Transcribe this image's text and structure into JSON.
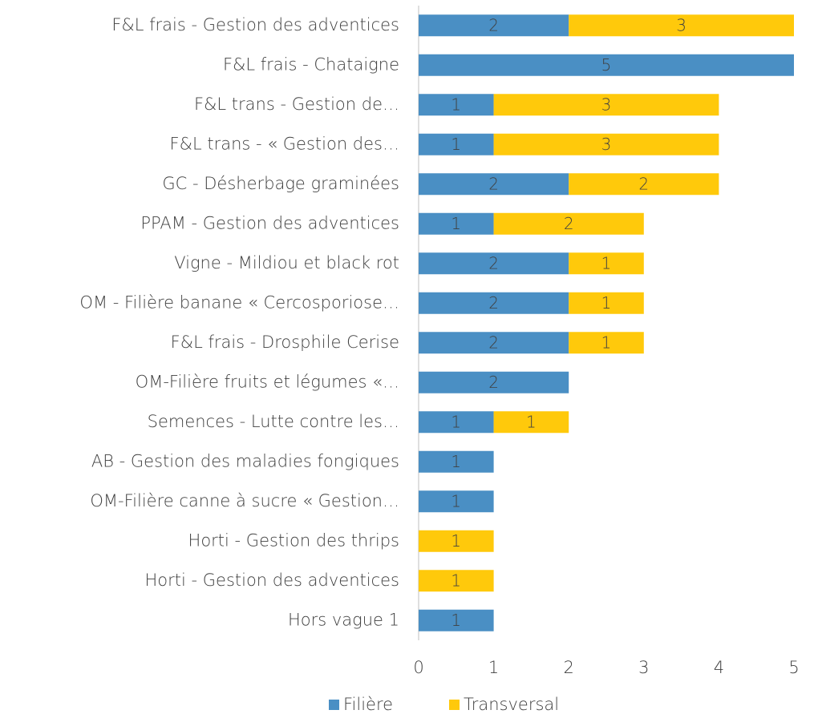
{
  "chart_data": {
    "type": "bar",
    "orientation": "horizontal",
    "stacked": true,
    "categories": [
      "F&L frais - Gestion des adventices",
      "F&L frais - Chataigne",
      "F&L trans -  Gestion de…",
      "F&L trans - « Gestion des…",
      "GC - Désherbage graminées",
      "PPAM - Gestion des adventices",
      "Vigne - Mildiou et black rot",
      "OM - Filière banane « Cercosporiose…",
      "F&L frais - Drosphile Cerise",
      "OM-Filière fruits et légumes «…",
      "Semences - Lutte contre les…",
      "AB - Gestion des maladies fongiques",
      "OM-Filière canne à sucre « Gestion…",
      "Horti - Gestion des thrips",
      "Horti - Gestion des adventices",
      "Hors vague 1"
    ],
    "series": [
      {
        "name": "Filière",
        "color": "#4a8fc4",
        "values": [
          2,
          5,
          1,
          1,
          2,
          1,
          2,
          2,
          2,
          2,
          1,
          1,
          1,
          null,
          null,
          1
        ]
      },
      {
        "name": "Transversal",
        "color": "#ffc90b",
        "values": [
          3,
          null,
          3,
          3,
          2,
          2,
          1,
          1,
          1,
          null,
          1,
          null,
          null,
          1,
          1,
          null
        ]
      }
    ],
    "xlim": [
      0,
      5
    ],
    "xticks": [
      0,
      1,
      2,
      3,
      4,
      5
    ],
    "grid": false,
    "legend": "bottom"
  }
}
